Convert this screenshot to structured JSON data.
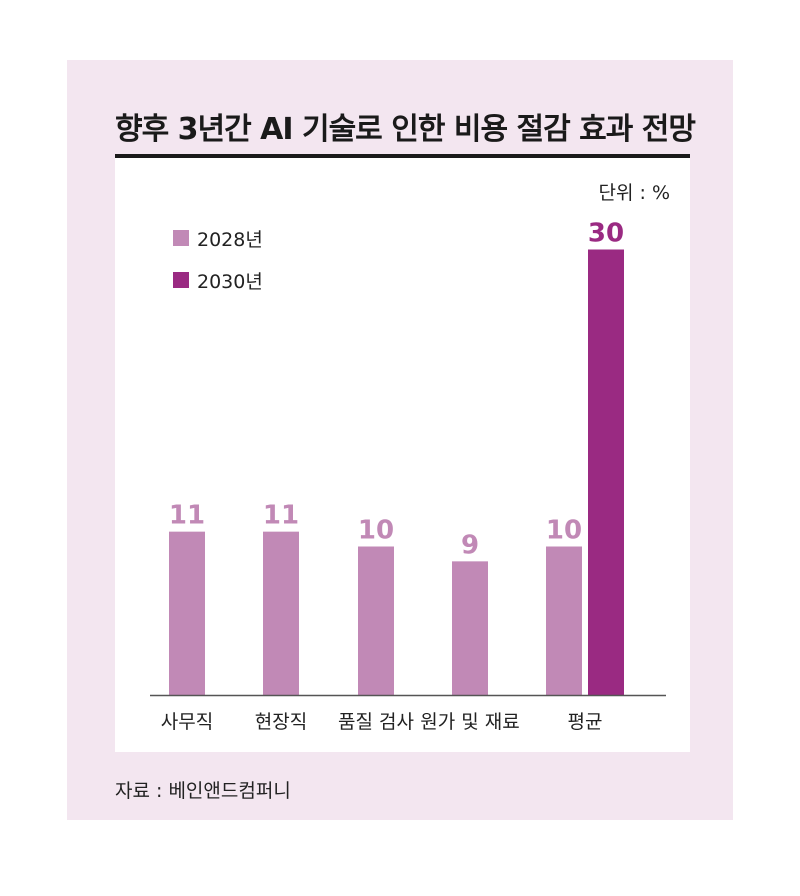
{
  "title": "향후 3년간 AI 기술로 인한 비용 절감 효과 전망",
  "unit_label": "단위 : %",
  "source": "자료 : 베인앤드컴퍼니",
  "colors": {
    "frame": "#f3e6f0",
    "s2028": "#c189b6",
    "s2030": "#9a2a82",
    "label2030": "#9a2a82",
    "text": "#222222"
  },
  "chart_data": {
    "type": "bar",
    "categories": [
      "사무직",
      "현장직",
      "품질 검사",
      "원가 및 재료",
      "평균"
    ],
    "series": [
      {
        "name": "2028년",
        "values": [
          11,
          11,
          10,
          9,
          10
        ]
      },
      {
        "name": "2030년",
        "values": [
          null,
          null,
          null,
          null,
          30
        ]
      }
    ],
    "data_labels": [
      "11",
      "11",
      "10",
      "9",
      "10",
      "30"
    ],
    "ylim": [
      0,
      30
    ],
    "grid": false,
    "legend_position": "top-left"
  }
}
